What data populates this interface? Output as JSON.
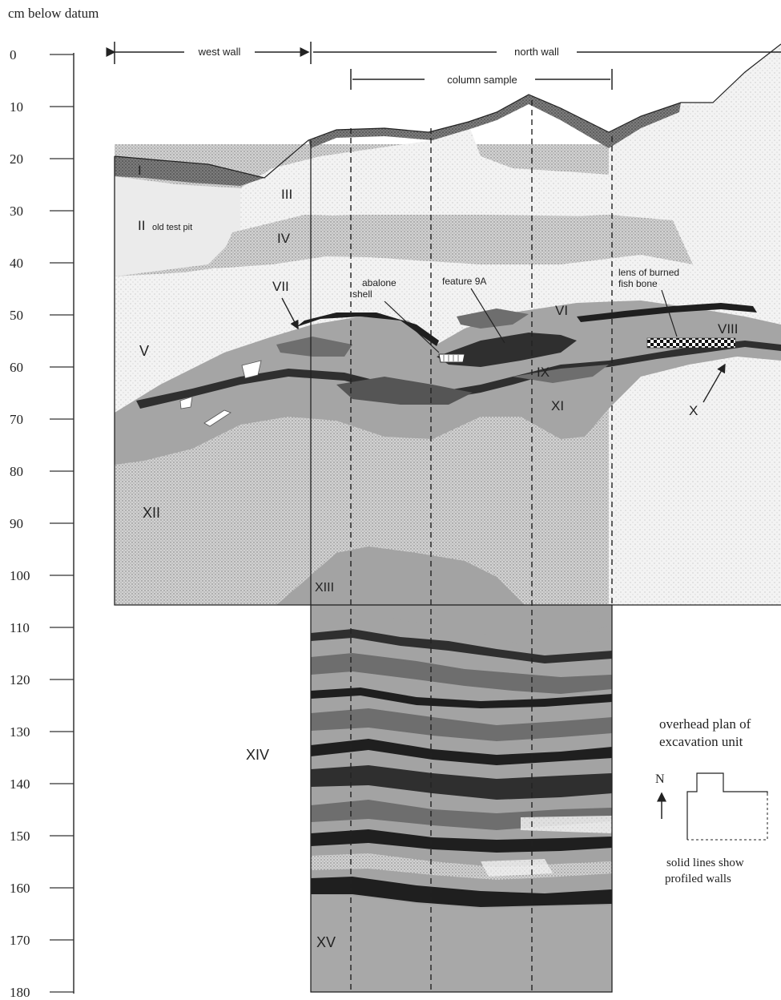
{
  "axis": {
    "title": "cm below datum",
    "ticks": [
      "0",
      "10",
      "20",
      "30",
      "40",
      "50",
      "60",
      "70",
      "80",
      "90",
      "100",
      "110",
      "120",
      "130",
      "140",
      "150",
      "160",
      "170",
      "180"
    ]
  },
  "walls": {
    "west": "west wall",
    "north": "north wall",
    "column": "column sample"
  },
  "strata": {
    "I": "I",
    "II": "II",
    "II_note": "old test pit",
    "III": "III",
    "IV": "IV",
    "V": "V",
    "VI": "VI",
    "VII": "VII",
    "VIII": "VIII",
    "IX": "IX",
    "X": "X",
    "XI": "XI",
    "XII": "XII",
    "XIII": "XIII",
    "XIV": "XIV",
    "XV": "XV"
  },
  "annotations": {
    "abalone_1": "abalone",
    "abalone_2": "shell",
    "feature": "feature 9A",
    "lens_1": "lens of burned",
    "lens_2": "fish bone"
  },
  "plan": {
    "title_1": "overhead plan of",
    "title_2": "excavation unit",
    "north": "N",
    "note_1": "solid lines show",
    "note_2": "profiled walls"
  },
  "colors": {
    "light_stipple": "#f1f1f1",
    "medium_gray": "#a3a3a3",
    "dark_gray": "#6e6e6e",
    "very_dark": "#2f2f2f",
    "line": "#222222"
  }
}
